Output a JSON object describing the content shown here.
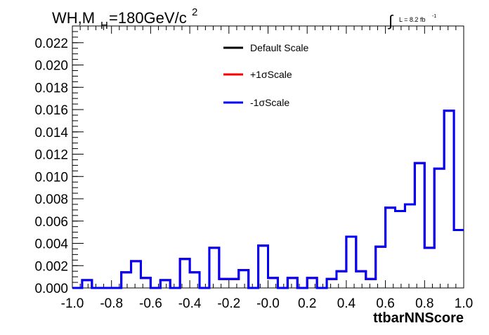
{
  "chart_data": {
    "type": "histogram",
    "title_main": "WH,M",
    "title_sub": "H",
    "title_rest": "=180GeV/c",
    "title_sup": "2",
    "lumi_label": "L = 8.2 fb",
    "lumi_sup": "-1",
    "xlabel": "ttbarNNScore",
    "ylabel": "",
    "xlim": [
      -1.0,
      1.0
    ],
    "ylim": [
      0.0,
      0.0235
    ],
    "x_ticks": [
      -1.0,
      -0.8,
      -0.6,
      -0.4,
      -0.2,
      0.0,
      0.2,
      0.4,
      0.6,
      0.8,
      1.0
    ],
    "x_tick_labels": [
      "-1.0",
      "-0.8",
      "-0.6",
      "-0.4",
      "-0.2",
      "-0.0",
      "0.2",
      "0.4",
      "0.6",
      "0.8",
      "1.0"
    ],
    "y_ticks": [
      0.0,
      0.002,
      0.004,
      0.006,
      0.008,
      0.01,
      0.012,
      0.014,
      0.016,
      0.018,
      0.02,
      0.022
    ],
    "y_tick_labels": [
      "0.000",
      "0.002",
      "0.004",
      "0.006",
      "0.008",
      "0.010",
      "0.012",
      "0.014",
      "0.016",
      "0.018",
      "0.020",
      "0.022"
    ],
    "bin_edges": [
      -1.0,
      -0.95,
      -0.9,
      -0.85,
      -0.8,
      -0.75,
      -0.7,
      -0.65,
      -0.6,
      -0.55,
      -0.5,
      -0.45,
      -0.4,
      -0.35,
      -0.3,
      -0.25,
      -0.2,
      -0.15,
      -0.1,
      -0.05,
      0.0,
      0.05,
      0.1,
      0.15,
      0.2,
      0.25,
      0.3,
      0.35,
      0.4,
      0.45,
      0.5,
      0.55,
      0.6,
      0.65,
      0.7,
      0.75,
      0.8,
      0.85,
      0.9,
      0.95,
      1.0
    ],
    "legend_position": "top-center",
    "grid": false,
    "series": [
      {
        "name": "Default Scale",
        "color": "#000000",
        "values": [
          0.0,
          0.0007,
          0.0,
          0.0,
          0.0,
          0.0014,
          0.0024,
          0.0009,
          0.0,
          0.0007,
          0.0,
          0.0026,
          0.0014,
          0.0,
          0.0036,
          0.0008,
          0.0008,
          0.0016,
          0.0,
          0.0038,
          0.0009,
          0.0,
          0.0009,
          0.0,
          0.0009,
          0.0,
          0.0008,
          0.0015,
          0.0046,
          0.0015,
          0.0008,
          0.0037,
          0.0072,
          0.0069,
          0.0075,
          0.0112,
          0.0036,
          0.0107,
          0.0159,
          0.0052
        ]
      },
      {
        "name": "+1σScale",
        "color": "#ff0000",
        "values": [
          0.0,
          0.0007,
          0.0,
          0.0,
          0.0,
          0.0014,
          0.0024,
          0.0009,
          0.0,
          0.0007,
          0.0,
          0.0026,
          0.0014,
          0.0,
          0.0036,
          0.0008,
          0.0008,
          0.0016,
          0.0,
          0.0038,
          0.0009,
          0.0,
          0.0009,
          0.0,
          0.0009,
          0.0,
          0.0008,
          0.0015,
          0.0046,
          0.0015,
          0.0008,
          0.0037,
          0.0072,
          0.0069,
          0.0075,
          0.0112,
          0.0036,
          0.0107,
          0.0159,
          0.0052
        ]
      },
      {
        "name": "-1σScale",
        "color": "#0000ff",
        "values": [
          0.0,
          0.0007,
          0.0,
          0.0,
          0.0,
          0.0014,
          0.0024,
          0.0009,
          0.0,
          0.0007,
          0.0,
          0.0026,
          0.0014,
          0.0,
          0.0036,
          0.0008,
          0.0008,
          0.0016,
          0.0,
          0.0038,
          0.0009,
          0.0,
          0.0009,
          0.0,
          0.0009,
          0.0,
          0.0008,
          0.0015,
          0.0046,
          0.0015,
          0.0008,
          0.0037,
          0.0072,
          0.0069,
          0.0075,
          0.0112,
          0.0036,
          0.0107,
          0.0159,
          0.0052
        ]
      }
    ]
  }
}
